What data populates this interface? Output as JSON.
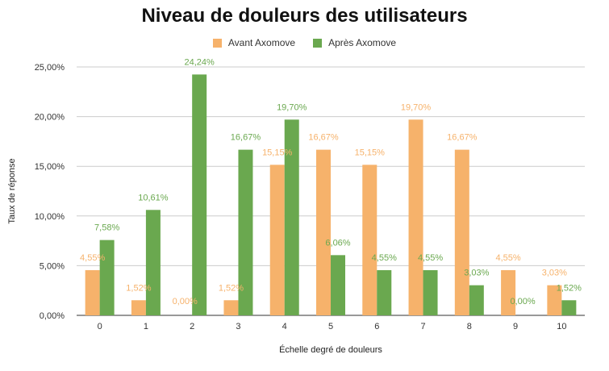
{
  "chart_data": {
    "type": "bar",
    "title": "Niveau de douleurs des utilisateurs",
    "xlabel": "Échelle degré de douleurs",
    "ylabel": "Taux de réponse",
    "categories": [
      "0",
      "1",
      "2",
      "3",
      "4",
      "5",
      "6",
      "7",
      "8",
      "9",
      "10"
    ],
    "ylim": [
      0,
      25
    ],
    "yticks": [
      0,
      5,
      10,
      15,
      20,
      25
    ],
    "ytick_labels": [
      "0,00%",
      "5,00%",
      "10,00%",
      "15,00%",
      "20,00%",
      "25,00%"
    ],
    "grid": true,
    "legend_position": "top-center",
    "series": [
      {
        "name": "Avant Axomove",
        "color": "#f6b26b",
        "values": [
          4.55,
          1.52,
          0.0,
          1.52,
          15.15,
          16.67,
          15.15,
          19.7,
          16.67,
          4.55,
          3.03
        ],
        "labels": [
          "4,55%",
          "1,52%",
          "0,00%",
          "1,52%",
          "15,15%",
          "16,67%",
          "15,15%",
          "19,70%",
          "16,67%",
          "4,55%",
          "3,03%"
        ]
      },
      {
        "name": "Après Axomove",
        "color": "#6aa84f",
        "values": [
          7.58,
          10.61,
          24.24,
          16.67,
          19.7,
          6.06,
          4.55,
          4.55,
          3.03,
          0.0,
          1.52
        ],
        "labels": [
          "7,58%",
          "10,61%",
          "24,24%",
          "16,67%",
          "19,70%",
          "6,06%",
          "4,55%",
          "4,55%",
          "3,03%",
          "0,00%",
          "1,52%"
        ]
      }
    ]
  }
}
